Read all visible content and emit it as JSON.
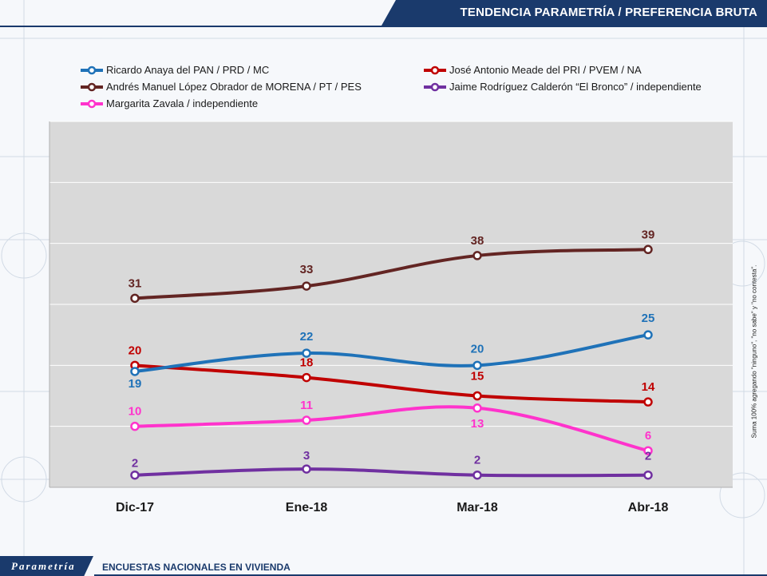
{
  "header": {
    "title": "TENDENCIA PARAMETRÍA / PREFERENCIA BRUTA"
  },
  "footer": {
    "logo_text": "Parametría",
    "subtitle": "ENCUESTAS NACIONALES EN VIVIENDA"
  },
  "side_note": "Suma 100% agregando \"ninguno\", \"no sabe\" y \"no contesta\".",
  "colors": {
    "header_bg": "#1a3a6c",
    "plot_bg": "#d9d9d9"
  },
  "chart_data": {
    "type": "line",
    "categories": [
      "Dic-17",
      "Ene-18",
      "Mar-18",
      "Abr-18"
    ],
    "ylim": [
      0,
      60
    ],
    "grid": true,
    "legend": "top",
    "series": [
      {
        "name": "Ricardo Anaya del PAN / PRD / MC",
        "color": "#1f72b8",
        "values": [
          19,
          22,
          20,
          25
        ]
      },
      {
        "name": "José Antonio Meade del PRI / PVEM / NA",
        "color": "#c00000",
        "values": [
          20,
          18,
          15,
          14
        ]
      },
      {
        "name": "Andrés Manuel López Obrador de MORENA / PT / PES",
        "color": "#632523",
        "values": [
          31,
          33,
          38,
          39
        ]
      },
      {
        "name": "Jaime Rodríguez Calderón  “El Bronco” / independiente",
        "color": "#7030a0",
        "values": [
          2,
          3,
          2,
          2
        ]
      },
      {
        "name": "Margarita Zavala / independiente",
        "color": "#ff33cc",
        "values": [
          10,
          11,
          13,
          6
        ]
      }
    ]
  }
}
